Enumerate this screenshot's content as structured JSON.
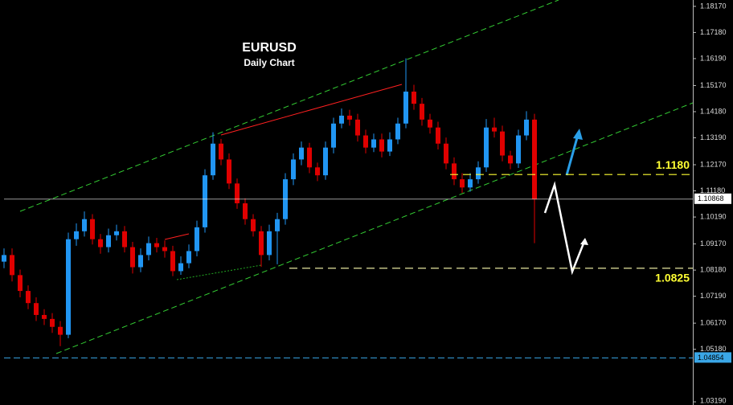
{
  "chart_data": {
    "type": "candlestick",
    "title": "EURUSD",
    "subtitle": "Daily Chart",
    "open": [
      1.085,
      1.0875,
      1.0799,
      1.0739,
      1.0693,
      1.0648,
      1.0633,
      1.0603,
      1.0573,
      1.0935,
      1.0965,
      1.1011,
      1.0935,
      1.0905,
      1.095,
      1.0965,
      1.0905,
      1.0829,
      1.0875,
      1.092,
      1.0905,
      1.089,
      1.0814,
      1.0844,
      1.089,
      1.098,
      1.1177,
      1.1297,
      1.1237,
      1.1146,
      1.1071,
      1.1011,
      1.0965,
      1.0875,
      1.0965,
      1.1011,
      1.1162,
      1.1237,
      1.1282,
      1.1207,
      1.1177,
      1.1282,
      1.1373,
      1.1403,
      1.1388,
      1.1328,
      1.1282,
      1.1313,
      1.1267,
      1.1313,
      1.1373,
      1.1494,
      1.1448,
      1.1388,
      1.1358,
      1.1297,
      1.1222,
      1.1162,
      1.1131,
      1.1162,
      1.1207,
      1.1358,
      1.1343,
      1.1252,
      1.1222,
      1.1328,
      1.1388
    ],
    "high": [
      1.09,
      1.09,
      1.082,
      1.076,
      1.0715,
      1.067,
      1.0655,
      1.0625,
      1.096,
      1.0995,
      1.104,
      1.103,
      1.0955,
      1.0975,
      1.099,
      1.0985,
      1.0925,
      1.09,
      1.0945,
      1.094,
      1.093,
      1.091,
      1.087,
      1.0915,
      1.1005,
      1.12,
      1.134,
      1.1315,
      1.126,
      1.1165,
      1.109,
      1.103,
      1.0985,
      1.099,
      1.1035,
      1.1185,
      1.126,
      1.1305,
      1.13,
      1.1225,
      1.1305,
      1.1395,
      1.143,
      1.1425,
      1.141,
      1.135,
      1.1335,
      1.1335,
      1.134,
      1.1395,
      1.162,
      1.152,
      1.147,
      1.141,
      1.138,
      1.132,
      1.1245,
      1.1185,
      1.1185,
      1.123,
      1.139,
      1.1395,
      1.1365,
      1.127,
      1.135,
      1.142,
      1.141
    ],
    "low": [
      1.0825,
      1.0775,
      1.0715,
      1.067,
      1.0625,
      1.061,
      1.058,
      1.053,
      1.056,
      1.091,
      1.0945,
      1.0915,
      1.088,
      1.0885,
      1.093,
      1.0885,
      1.0805,
      1.081,
      1.0855,
      1.0885,
      1.0865,
      1.0795,
      1.08,
      1.0825,
      1.087,
      1.096,
      1.116,
      1.1215,
      1.1125,
      1.105,
      1.099,
      1.0945,
      1.083,
      1.0855,
      1.084,
      1.099,
      1.114,
      1.1215,
      1.1185,
      1.1155,
      1.116,
      1.126,
      1.1355,
      1.1365,
      1.1305,
      1.126,
      1.1265,
      1.1245,
      1.125,
      1.1295,
      1.1355,
      1.1425,
      1.1365,
      1.1335,
      1.1275,
      1.12,
      1.114,
      1.111,
      1.1115,
      1.1145,
      1.119,
      1.132,
      1.123,
      1.12,
      1.1205,
      1.131,
      1.092
    ],
    "close": [
      1.0875,
      1.0799,
      1.0739,
      1.0693,
      1.0648,
      1.0633,
      1.0603,
      1.0573,
      1.0935,
      1.0965,
      1.1011,
      1.0935,
      1.0905,
      1.095,
      1.0965,
      1.0905,
      1.0829,
      1.0875,
      1.092,
      1.0905,
      1.089,
      1.0814,
      1.0844,
      1.089,
      1.098,
      1.1177,
      1.1297,
      1.1237,
      1.1146,
      1.1071,
      1.1011,
      1.0965,
      1.0875,
      1.0965,
      1.1011,
      1.1162,
      1.1237,
      1.1282,
      1.1207,
      1.1177,
      1.1282,
      1.1373,
      1.1403,
      1.1388,
      1.1328,
      1.1282,
      1.1313,
      1.1267,
      1.1313,
      1.1373,
      1.1494,
      1.1448,
      1.1388,
      1.1358,
      1.1297,
      1.1222,
      1.1162,
      1.1131,
      1.1162,
      1.1207,
      1.1358,
      1.1343,
      1.1252,
      1.1222,
      1.1328,
      1.1388,
      1.1086
    ],
    "up_color": "#2196f3",
    "down_color": "#e00000",
    "ylim": [
      1.0307,
      1.1841
    ],
    "yticks": [
      {
        "value": 1.1817,
        "label": "1.18170"
      },
      {
        "value": 1.1718,
        "label": "1.17180"
      },
      {
        "value": 1.1619,
        "label": "1.16190"
      },
      {
        "value": 1.1517,
        "label": "1.15170"
      },
      {
        "value": 1.1418,
        "label": "1.14180"
      },
      {
        "value": 1.1319,
        "label": "1.13190"
      },
      {
        "value": 1.1217,
        "label": "1.12170"
      },
      {
        "value": 1.1118,
        "label": "1.11180"
      },
      {
        "value": 1.1019,
        "label": "1.10190"
      },
      {
        "value": 1.0917,
        "label": "1.09170"
      },
      {
        "value": 1.0818,
        "label": "1.08180"
      },
      {
        "value": 1.0719,
        "label": "1.07190"
      },
      {
        "value": 1.0617,
        "label": "1.06170"
      },
      {
        "value": 1.0518,
        "label": "1.05180"
      },
      {
        "value": 1.0319,
        "label": "1.03190"
      }
    ],
    "markers": {
      "values": [
        1.10868,
        1.04854
      ],
      "colors": [
        "#ffffff",
        "#3aa6e6"
      ]
    },
    "levels": [
      {
        "value": 1.118,
        "label": "1.1180"
      },
      1.0825
    ],
    "level_colors": [
      "#ffff33",
      "#ffffb0"
    ]
  }
}
